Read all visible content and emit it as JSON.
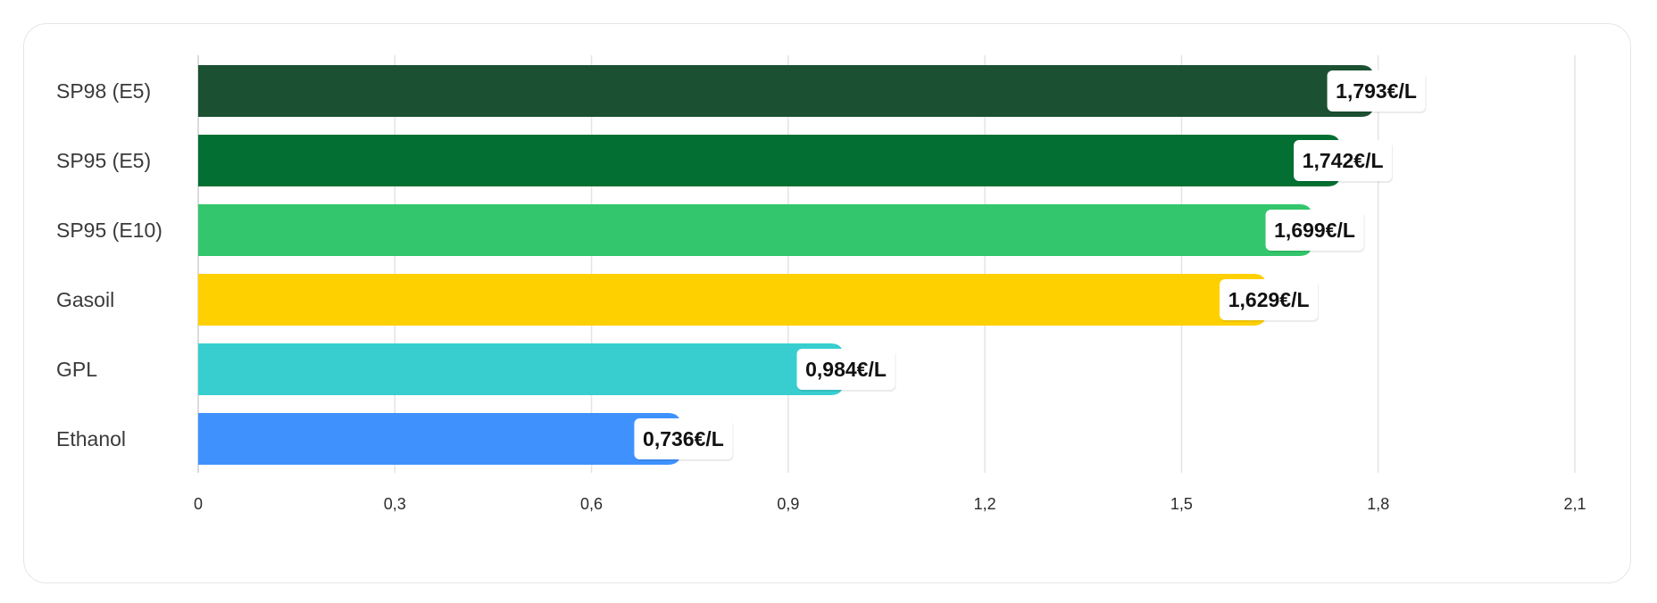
{
  "chart_data": {
    "type": "bar",
    "orientation": "horizontal",
    "categories": [
      "SP98 (E5)",
      "SP95 (E5)",
      "SP95 (E10)",
      "Gasoil",
      "GPL",
      "Ethanol"
    ],
    "values": [
      1.793,
      1.742,
      1.699,
      1.629,
      0.984,
      0.736
    ],
    "value_labels": [
      "1,793€/L",
      "1,742€/L",
      "1,699€/L",
      "1,629€/L",
      "0,984€/L",
      "0,736€/L"
    ],
    "colors": [
      "#1b5132",
      "#046f33",
      "#33c66c",
      "#ffd000",
      "#38cecf",
      "#3f92fe"
    ],
    "xlim": [
      0,
      2.1
    ],
    "xticks": [
      0,
      0.3,
      0.6,
      0.9,
      1.2,
      1.5,
      1.8,
      2.1
    ],
    "xtick_labels": [
      "0",
      "0,3",
      "0,6",
      "0,9",
      "1,2",
      "1,5",
      "1,8",
      "2,1"
    ],
    "grid": "vertical",
    "legend": "none",
    "title": "",
    "xlabel": "",
    "ylabel": ""
  }
}
